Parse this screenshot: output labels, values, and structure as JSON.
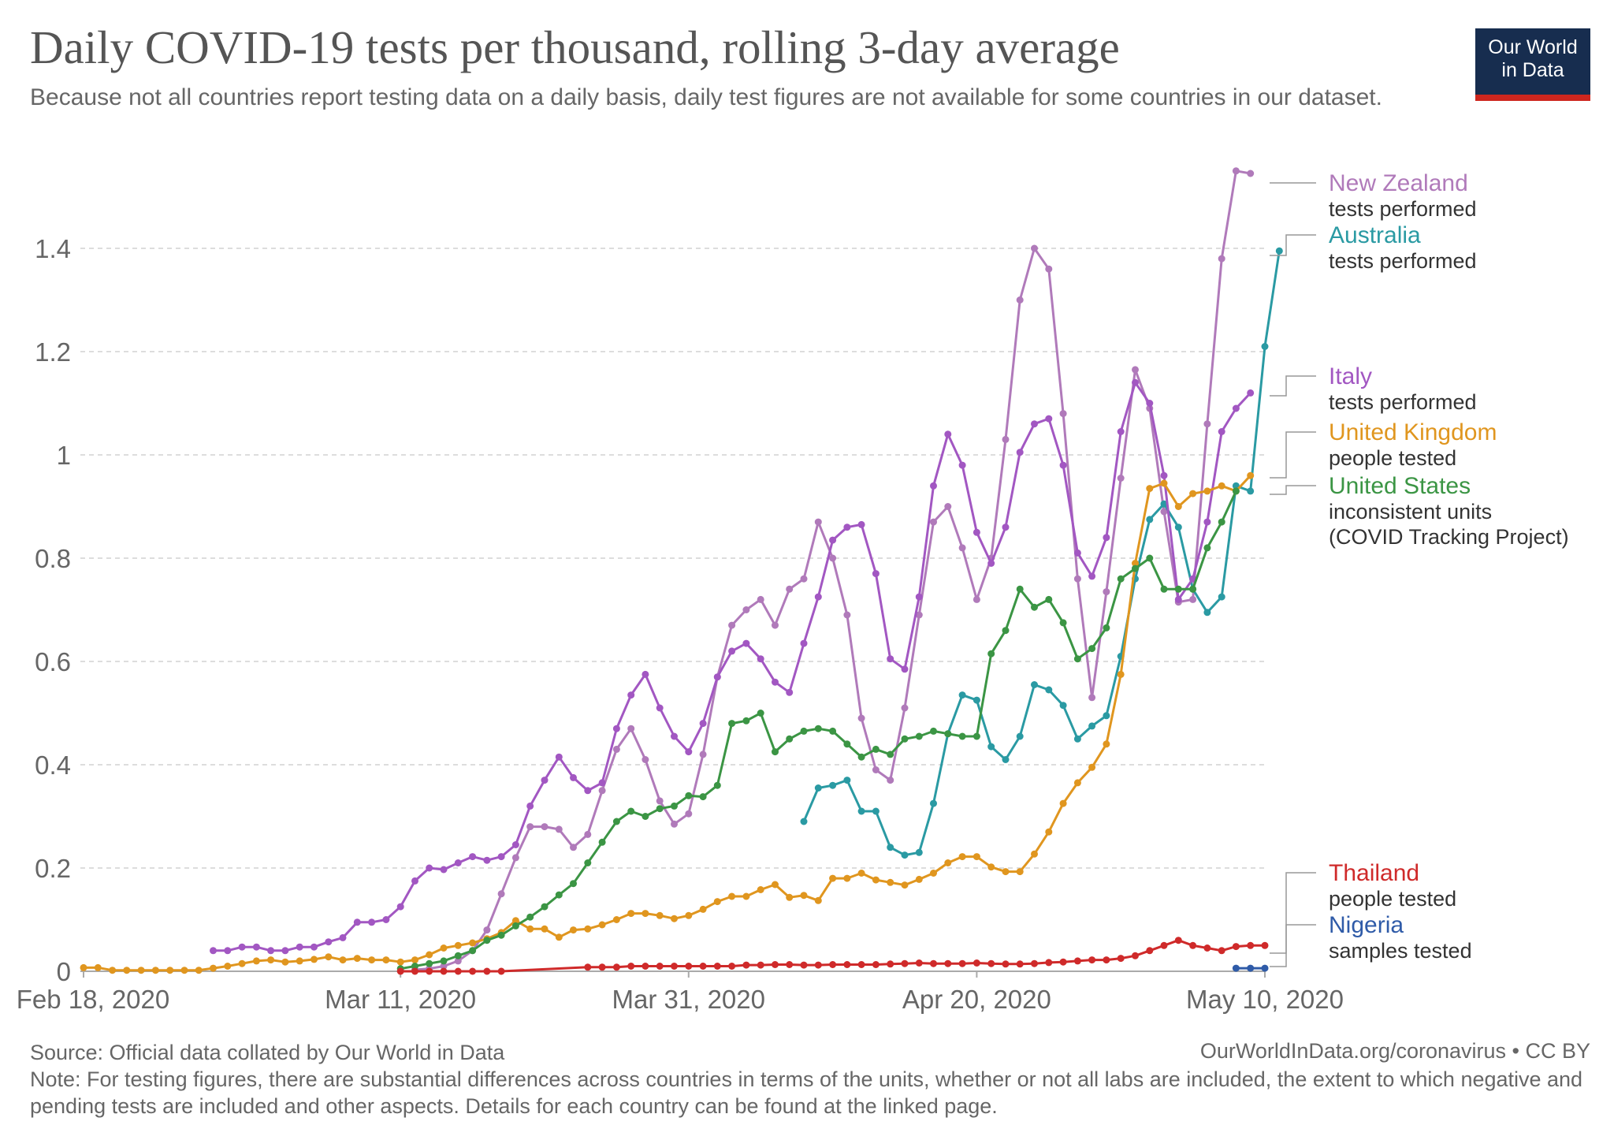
{
  "header": {
    "title": "Daily COVID-19 tests per thousand, rolling 3-day average",
    "subtitle": "Because not all countries report testing data on a daily basis, daily test figures are not available for some countries in our dataset."
  },
  "logo": {
    "line1": "Our World",
    "line2": "in Data"
  },
  "footer": {
    "source": "Source: Official data collated by Our World in Data",
    "url": "OurWorldInData.org/coronavirus • CC BY",
    "note": "Note: For testing figures, there are substantial differences across countries in terms of the units, whether or not all labs are included, the extent to which negative and pending tests are included and other aspects. Details for each country can be found at the linked page."
  },
  "chart_data": {
    "type": "line",
    "x_start": "2020-02-18",
    "x_end": "2020-05-10",
    "x_ticks": [
      {
        "day": 0,
        "label": "Feb 18, 2020"
      },
      {
        "day": 22,
        "label": "Mar 11, 2020"
      },
      {
        "day": 42,
        "label": "Mar 31, 2020"
      },
      {
        "day": 62,
        "label": "Apr 20, 2020"
      },
      {
        "day": 82,
        "label": "May 10, 2020"
      }
    ],
    "y_ticks": [
      {
        "value": 0,
        "label": "0"
      },
      {
        "value": 0.2,
        "label": "0.2"
      },
      {
        "value": 0.4,
        "label": "0.4"
      },
      {
        "value": 0.6,
        "label": "0.6"
      },
      {
        "value": 0.8,
        "label": "0.8"
      },
      {
        "value": 1,
        "label": "1"
      },
      {
        "value": 1.2,
        "label": "1.2"
      },
      {
        "value": 1.4,
        "label": "1.4"
      }
    ],
    "ylim": [
      0,
      1.56
    ],
    "grid": "horizontal dashed",
    "legend": "right",
    "series": [
      {
        "name": "New Zealand",
        "note": "tests performed",
        "color": "#b07aba",
        "start": 23,
        "values": [
          0.003,
          0.005,
          0.01,
          0.02,
          0.04,
          0.08,
          0.15,
          0.22,
          0.28,
          0.28,
          0.275,
          0.24,
          0.265,
          0.35,
          0.43,
          0.47,
          0.41,
          0.33,
          0.285,
          0.305,
          0.42,
          0.57,
          0.67,
          0.7,
          0.72,
          0.67,
          0.74,
          0.76,
          0.87,
          0.8,
          0.69,
          0.49,
          0.39,
          0.37,
          0.51,
          0.69,
          0.87,
          0.9,
          0.82,
          0.72,
          0.8,
          1.03,
          1.3,
          1.4,
          1.36,
          1.08,
          0.76,
          0.53,
          0.735,
          0.955,
          1.165,
          1.09,
          0.89,
          0.715,
          0.72,
          1.06,
          1.38,
          1.55,
          1.545
        ]
      },
      {
        "name": "Australia",
        "note": "tests performed",
        "color": "#2a9aa3",
        "start": 50,
        "values": [
          0.29,
          0.355,
          0.36,
          0.37,
          0.31,
          0.31,
          0.24,
          0.225,
          0.23,
          0.325,
          0.46,
          0.535,
          0.525,
          0.435,
          0.41,
          0.455,
          0.555,
          0.545,
          0.515,
          0.45,
          0.475,
          0.495,
          0.61,
          0.76,
          0.875,
          0.905,
          0.86,
          0.74,
          0.695,
          0.725,
          0.94,
          0.93,
          1.21,
          1.395
        ]
      },
      {
        "name": "Italy",
        "note": "tests performed",
        "color": "#a257c2",
        "start": 9,
        "values": [
          0.04,
          0.04,
          0.047,
          0.047,
          0.04,
          0.04,
          0.047,
          0.047,
          0.057,
          0.065,
          0.095,
          0.095,
          0.1,
          0.125,
          0.175,
          0.2,
          0.197,
          0.21,
          0.222,
          0.215,
          0.222,
          0.245,
          0.32,
          0.37,
          0.415,
          0.375,
          0.35,
          0.365,
          0.47,
          0.535,
          0.575,
          0.51,
          0.455,
          0.425,
          0.48,
          0.57,
          0.62,
          0.635,
          0.605,
          0.56,
          0.54,
          0.635,
          0.725,
          0.835,
          0.86,
          0.865,
          0.77,
          0.605,
          0.585,
          0.725,
          0.94,
          1.04,
          0.98,
          0.85,
          0.79,
          0.86,
          1.005,
          1.06,
          1.07,
          0.98,
          0.81,
          0.765,
          0.84,
          1.045,
          1.14,
          1.1,
          0.96,
          0.72,
          0.76,
          0.87,
          1.045,
          1.09,
          1.12
        ]
      },
      {
        "name": "United Kingdom",
        "note": "people tested",
        "color": "#e0961f",
        "start": 0,
        "values": [
          0.007,
          0.007,
          0.002,
          0.002,
          0.002,
          0.002,
          0.002,
          0.002,
          0.002,
          0.006,
          0.01,
          0.015,
          0.02,
          0.022,
          0.018,
          0.02,
          0.023,
          0.028,
          0.022,
          0.025,
          0.022,
          0.022,
          0.018,
          0.022,
          0.032,
          0.045,
          0.05,
          0.055,
          0.063,
          0.075,
          0.098,
          0.082,
          0.082,
          0.066,
          0.08,
          0.082,
          0.09,
          0.1,
          0.112,
          0.112,
          0.108,
          0.102,
          0.108,
          0.12,
          0.135,
          0.145,
          0.145,
          0.158,
          0.168,
          0.143,
          0.147,
          0.137,
          0.18,
          0.18,
          0.19,
          0.177,
          0.172,
          0.167,
          0.178,
          0.19,
          0.21,
          0.222,
          0.222,
          0.202,
          0.193,
          0.193,
          0.227,
          0.27,
          0.325,
          0.365,
          0.395,
          0.44,
          0.575,
          0.79,
          0.935,
          0.945,
          0.9,
          0.925,
          0.93,
          0.94,
          0.93,
          0.96
        ]
      },
      {
        "name": "United States",
        "note": "inconsistent units (COVID Tracking Project)",
        "color": "#3b9544",
        "start": 22,
        "values": [
          0.005,
          0.01,
          0.015,
          0.02,
          0.03,
          0.04,
          0.06,
          0.07,
          0.088,
          0.105,
          0.125,
          0.148,
          0.17,
          0.21,
          0.25,
          0.29,
          0.31,
          0.3,
          0.315,
          0.32,
          0.34,
          0.338,
          0.36,
          0.48,
          0.485,
          0.5,
          0.425,
          0.45,
          0.465,
          0.47,
          0.465,
          0.44,
          0.415,
          0.43,
          0.42,
          0.45,
          0.455,
          0.465,
          0.46,
          0.455,
          0.455,
          0.615,
          0.66,
          0.74,
          0.705,
          0.72,
          0.675,
          0.605,
          0.625,
          0.665,
          0.76,
          0.78,
          0.8,
          0.74,
          0.74,
          0.74,
          0.82,
          0.87,
          0.93
        ]
      },
      {
        "name": "Thailand",
        "note": "people tested",
        "color": "#cf2a2a",
        "points": [
          [
            22,
            0
          ],
          [
            23,
            0
          ],
          [
            24,
            0
          ],
          [
            25,
            0
          ],
          [
            26,
            0
          ],
          [
            27,
            0
          ],
          [
            28,
            0
          ],
          [
            29,
            0
          ],
          [
            35,
            0.008
          ],
          [
            36,
            0.008
          ],
          [
            37,
            0.008
          ],
          [
            38,
            0.01
          ],
          [
            39,
            0.01
          ],
          [
            40,
            0.01
          ],
          [
            41,
            0.01
          ],
          [
            42,
            0.01
          ],
          [
            43,
            0.01
          ],
          [
            44,
            0.01
          ],
          [
            45,
            0.01
          ],
          [
            46,
            0.012
          ],
          [
            47,
            0.012
          ],
          [
            48,
            0.013
          ],
          [
            49,
            0.013
          ],
          [
            50,
            0.012
          ],
          [
            51,
            0.012
          ],
          [
            52,
            0.013
          ],
          [
            53,
            0.013
          ],
          [
            54,
            0.013
          ],
          [
            55,
            0.013
          ],
          [
            56,
            0.014
          ],
          [
            57,
            0.015
          ],
          [
            58,
            0.016
          ],
          [
            59,
            0.015
          ],
          [
            60,
            0.015
          ],
          [
            61,
            0.015
          ],
          [
            62,
            0.016
          ],
          [
            63,
            0.015
          ],
          [
            64,
            0.014
          ],
          [
            65,
            0.014
          ],
          [
            66,
            0.015
          ],
          [
            67,
            0.017
          ],
          [
            68,
            0.018
          ],
          [
            69,
            0.02
          ],
          [
            70,
            0.022
          ],
          [
            71,
            0.022
          ],
          [
            72,
            0.025
          ],
          [
            73,
            0.03
          ],
          [
            74,
            0.04
          ],
          [
            75,
            0.05
          ],
          [
            76,
            0.06
          ],
          [
            77,
            0.05
          ],
          [
            78,
            0.045
          ],
          [
            79,
            0.04
          ],
          [
            80,
            0.048
          ],
          [
            81,
            0.05
          ],
          [
            82,
            0.05
          ]
        ]
      },
      {
        "name": "Nigeria",
        "note": "samples tested",
        "color": "#2f5ba8",
        "start": 80,
        "values": [
          0.006,
          0.006,
          0.006
        ]
      }
    ]
  }
}
